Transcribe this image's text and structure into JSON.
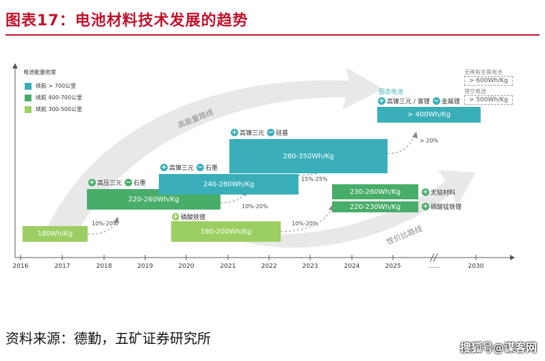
{
  "header": {
    "title": "图表17：电池材料技术发展的趋势"
  },
  "footer": {
    "source": "资料来源：德勤，五矿证券研究所",
    "watermark": "搜狐号@谋客网"
  },
  "diagram": {
    "y_axis_label": "电池能量密度",
    "legend": [
      {
        "label": "续航 > 700公里",
        "color": "#3aafb9"
      },
      {
        "label": "续航 400-700公里",
        "color": "#49ad6a"
      },
      {
        "label": "续航 300-500公里",
        "color": "#9ccf63"
      }
    ],
    "years": [
      "2016",
      "2017",
      "2018",
      "2019",
      "2020",
      "2021",
      "2022",
      "2023",
      "2024",
      "2025",
      "……",
      "2030"
    ],
    "routes": {
      "high_energy": "高能量路线",
      "cost_performance": "性价比路线"
    },
    "bars": {
      "b180": "180Wh/Kg",
      "b220_260": "220-260Wh/Kg",
      "b240_280": "240-280Wh/Kg",
      "b280_350": "280-350Wh/Kg",
      "b180_200": "180-200Wh/Kg",
      "b230_260": "230-260Wh/Kg",
      "b220_230": "220-230Wh/Kg",
      "b400": "> 400Wh/Kg"
    },
    "tags": {
      "t2018_plus": "高压三元",
      "t2018_minus": "石墨",
      "t2020_plus": "高镍三元",
      "t2020_minus": "石墨",
      "t2021_plus": "高镍三元",
      "t2021_minus": "硅基",
      "t2020_lfp": "磷酸铁锂",
      "t2024_cobaltfree": "无钴材料",
      "t2024_lmfp": "磷酸锰铁锂",
      "t2025_title": "固态电池",
      "t2025_plus": "高镍三元 / 富锂",
      "t2025_minus": "金属锂"
    },
    "percents": {
      "p1": "10%-20%",
      "p2": "10%-20%",
      "p3": "15%-25%",
      "p4": "10%-20%",
      "p5": "> 20%"
    },
    "future": {
      "label1": "无稀有金属电池",
      "value1": "> 600Wh/Kg",
      "label2": "锂空电池",
      "value2": "> 500Wh/Kg"
    },
    "colors": {
      "teal": "#3aafb9",
      "green": "#49ad6a",
      "lightgreen": "#9ccf63",
      "title_red": "#c0122b"
    }
  }
}
